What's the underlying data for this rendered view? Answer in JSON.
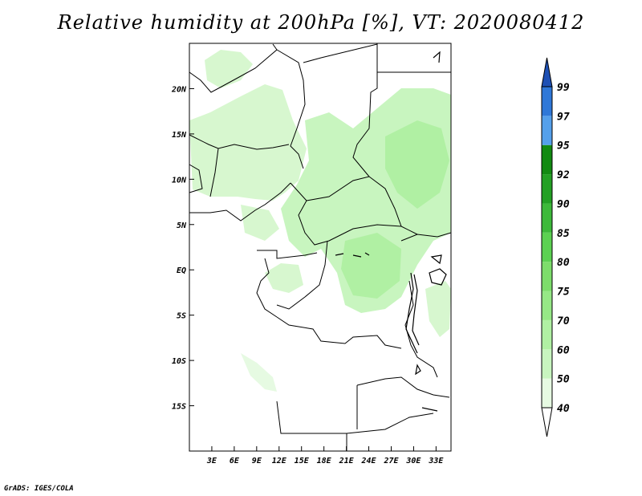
{
  "title": "Relative humidity at 200hPa [%], VT: 2020080412",
  "credit": "GrADS: IGES/COLA",
  "map": {
    "lon_range": [
      0,
      35
    ],
    "lat_range": [
      -20,
      25
    ],
    "x_ticks": [
      {
        "lon": 3,
        "label": "3E"
      },
      {
        "lon": 6,
        "label": "6E"
      },
      {
        "lon": 9,
        "label": "9E"
      },
      {
        "lon": 12,
        "label": "12E"
      },
      {
        "lon": 15,
        "label": "15E"
      },
      {
        "lon": 18,
        "label": "18E"
      },
      {
        "lon": 21,
        "label": "21E"
      },
      {
        "lon": 24,
        "label": "24E"
      },
      {
        "lon": 27,
        "label": "27E"
      },
      {
        "lon": 30,
        "label": "30E"
      },
      {
        "lon": 33,
        "label": "33E"
      }
    ],
    "y_ticks": [
      {
        "lat": 20,
        "label": "20N"
      },
      {
        "lat": 15,
        "label": "15N"
      },
      {
        "lat": 10,
        "label": "10N"
      },
      {
        "lat": 5,
        "label": "5N"
      },
      {
        "lat": 0,
        "label": "EQ"
      },
      {
        "lat": -5,
        "label": "5S"
      },
      {
        "lat": -10,
        "label": "10S"
      },
      {
        "lat": -15,
        "label": "15S"
      }
    ]
  },
  "colorbar": {
    "levels": [
      "40",
      "50",
      "60",
      "70",
      "75",
      "80",
      "85",
      "90",
      "92",
      "95",
      "97",
      "99"
    ],
    "colors": [
      "#ffffff",
      "#e6fae2",
      "#c8f5bf",
      "#b0f0a3",
      "#96e886",
      "#7ddd6b",
      "#5cd152",
      "#3db93a",
      "#23a024",
      "#128a12",
      "#55a0eb",
      "#2f78d8",
      "#1e50b4"
    ]
  },
  "humidity_regions": [
    {
      "level": "50",
      "color": "#d7f7cf"
    },
    {
      "level": "60",
      "color": "#c8f5bf"
    },
    {
      "level": "70",
      "color": "#b0f0a3"
    }
  ]
}
